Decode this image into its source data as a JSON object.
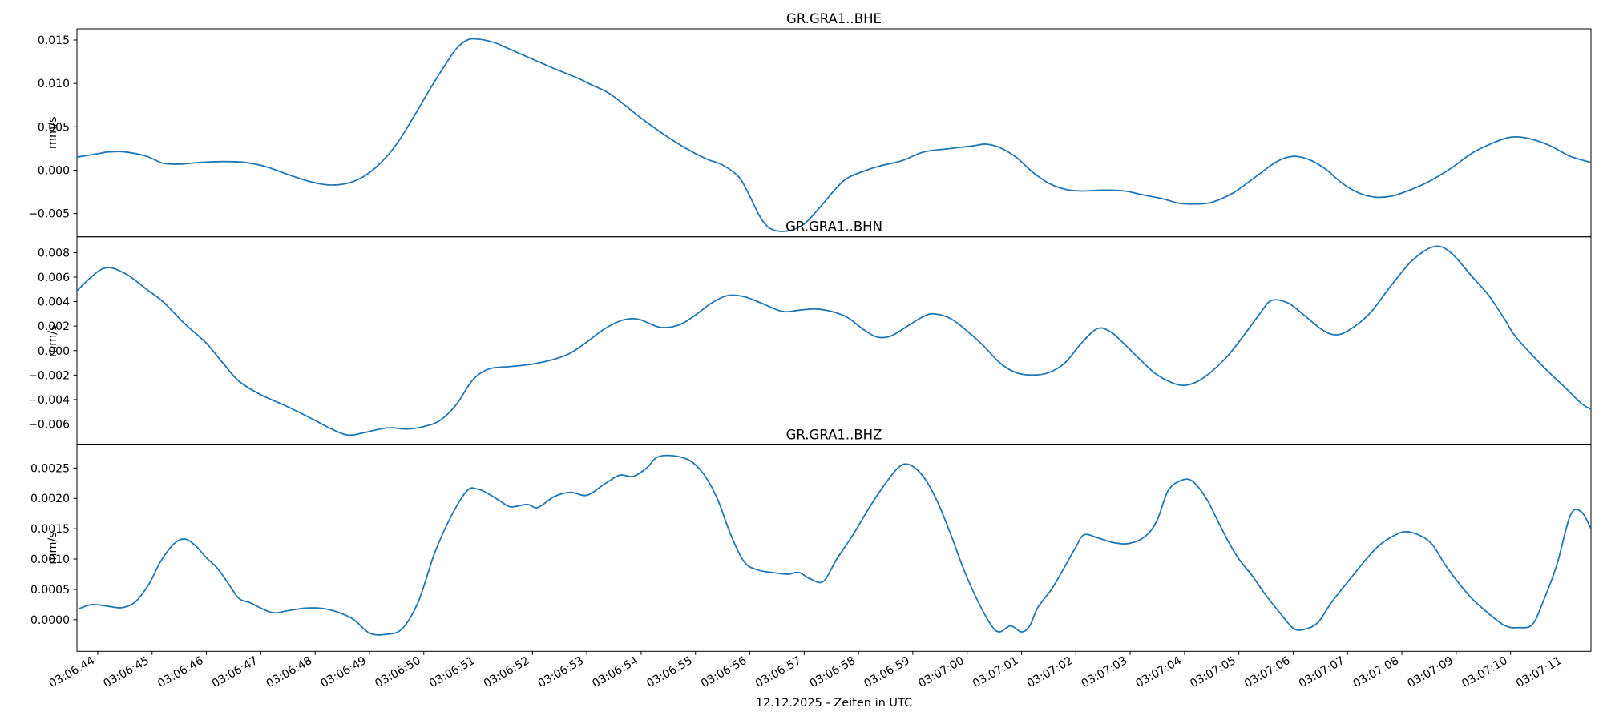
{
  "figure": {
    "background": "#ffffff",
    "trace_color": "#1f77b4",
    "axis_color": "#000000"
  },
  "x_axis": {
    "label": "12.12.2025 - Zeiten in UTC",
    "xlim": [
      -0.383,
      27.48
    ],
    "tick_times": [
      0,
      1,
      2,
      3,
      4,
      5,
      6,
      7,
      8,
      9,
      10,
      11,
      12,
      13,
      14,
      15,
      16,
      17,
      18,
      19,
      20,
      21,
      22,
      23,
      24,
      25,
      26,
      27
    ],
    "tick_labels": [
      "03:06:44",
      "03:06:45",
      "03:06:46",
      "03:06:47",
      "03:06:48",
      "03:06:49",
      "03:06:50",
      "03:06:51",
      "03:06:52",
      "03:06:53",
      "03:06:54",
      "03:06:55",
      "03:06:56",
      "03:06:57",
      "03:06:58",
      "03:06:59",
      "03:07:00",
      "03:07:01",
      "03:07:02",
      "03:07:03",
      "03:07:04",
      "03:07:05",
      "03:07:06",
      "03:07:07",
      "03:07:08",
      "03:07:09",
      "03:07:10",
      "03:07:11"
    ]
  },
  "chart_data": [
    {
      "type": "line",
      "title": "GR.GRA1..BHE",
      "ylabel": "mm/s",
      "x_unit": "seconds after 03:06:44 UTC",
      "ylim": [
        -0.00768,
        0.01629
      ],
      "yticks": [
        0.015,
        0.01,
        0.005,
        0.0,
        -0.005
      ],
      "ytick_labels": [
        "0.015",
        "0.010",
        "0.005",
        "0.000",
        "−0.005"
      ],
      "points": [
        [
          -0.38,
          0.0015
        ],
        [
          0,
          0.0019
        ],
        [
          0.2,
          0.0021
        ],
        [
          0.5,
          0.0021
        ],
        [
          0.9,
          0.0016
        ],
        [
          1.2,
          0.0008
        ],
        [
          1.5,
          0.0007
        ],
        [
          1.9,
          0.0009
        ],
        [
          2.3,
          0.001
        ],
        [
          2.7,
          0.0009
        ],
        [
          3.1,
          0.0004
        ],
        [
          3.5,
          -0.0005
        ],
        [
          3.9,
          -0.0013
        ],
        [
          4.25,
          -0.0017
        ],
        [
          4.6,
          -0.0015
        ],
        [
          4.9,
          -0.0007
        ],
        [
          5.2,
          0.0008
        ],
        [
          5.5,
          0.003
        ],
        [
          5.8,
          0.006
        ],
        [
          6.1,
          0.0092
        ],
        [
          6.4,
          0.0122
        ],
        [
          6.6,
          0.014
        ],
        [
          6.8,
          0.015
        ],
        [
          7.0,
          0.0151
        ],
        [
          7.3,
          0.0147
        ],
        [
          7.6,
          0.0139
        ],
        [
          8.0,
          0.0128
        ],
        [
          8.4,
          0.0117
        ],
        [
          8.8,
          0.0107
        ],
        [
          9.1,
          0.0098
        ],
        [
          9.4,
          0.0089
        ],
        [
          9.7,
          0.0075
        ],
        [
          10.0,
          0.006
        ],
        [
          10.4,
          0.0042
        ],
        [
          10.8,
          0.0026
        ],
        [
          11.2,
          0.0013
        ],
        [
          11.5,
          0.0006
        ],
        [
          11.8,
          -0.0008
        ],
        [
          12.0,
          -0.003
        ],
        [
          12.2,
          -0.0055
        ],
        [
          12.4,
          -0.0068
        ],
        [
          12.7,
          -0.007
        ],
        [
          13.0,
          -0.0062
        ],
        [
          13.3,
          -0.0042
        ],
        [
          13.6,
          -0.002
        ],
        [
          13.8,
          -0.0009
        ],
        [
          14.1,
          -0.0001
        ],
        [
          14.4,
          0.0005
        ],
        [
          14.8,
          0.0011
        ],
        [
          15.2,
          0.0021
        ],
        [
          15.7,
          0.0025
        ],
        [
          16.1,
          0.0028
        ],
        [
          16.35,
          0.003
        ],
        [
          16.6,
          0.0026
        ],
        [
          16.9,
          0.0015
        ],
        [
          17.2,
          -0.0002
        ],
        [
          17.5,
          -0.0015
        ],
        [
          17.8,
          -0.0022
        ],
        [
          18.1,
          -0.0024
        ],
        [
          18.5,
          -0.0023
        ],
        [
          18.9,
          -0.0024
        ],
        [
          19.2,
          -0.0028
        ],
        [
          19.6,
          -0.0033
        ],
        [
          19.9,
          -0.0038
        ],
        [
          20.2,
          -0.0039
        ],
        [
          20.5,
          -0.0037
        ],
        [
          20.9,
          -0.0026
        ],
        [
          21.3,
          -0.0008
        ],
        [
          21.7,
          0.001
        ],
        [
          22.0,
          0.0016
        ],
        [
          22.3,
          0.0012
        ],
        [
          22.6,
          0.0001
        ],
        [
          22.9,
          -0.0015
        ],
        [
          23.2,
          -0.0026
        ],
        [
          23.5,
          -0.0031
        ],
        [
          23.8,
          -0.003
        ],
        [
          24.1,
          -0.0024
        ],
        [
          24.5,
          -0.0013
        ],
        [
          24.9,
          0.0002
        ],
        [
          25.3,
          0.002
        ],
        [
          25.7,
          0.0032
        ],
        [
          26.0,
          0.0038
        ],
        [
          26.3,
          0.0037
        ],
        [
          26.7,
          0.0029
        ],
        [
          27.1,
          0.0016
        ],
        [
          27.48,
          0.0009
        ]
      ]
    },
    {
      "type": "line",
      "title": "GR.GRA1..BHN",
      "ylabel": "mm/s",
      "x_unit": "seconds after 03:06:44 UTC",
      "ylim": [
        -0.0077,
        0.00929
      ],
      "yticks": [
        0.008,
        0.006,
        0.004,
        0.002,
        0.0,
        -0.002,
        -0.004,
        -0.006
      ],
      "ytick_labels": [
        "0.008",
        "0.006",
        "0.004",
        "0.002",
        "0.000",
        "−0.002",
        "−0.004",
        "−0.006"
      ],
      "points": [
        [
          -0.38,
          0.0049
        ],
        [
          0.1,
          0.0067
        ],
        [
          0.5,
          0.0063
        ],
        [
          0.9,
          0.005
        ],
        [
          1.2,
          0.004
        ],
        [
          1.6,
          0.0022
        ],
        [
          2.0,
          0.0006
        ],
        [
          2.3,
          -0.001
        ],
        [
          2.6,
          -0.0025
        ],
        [
          3.0,
          -0.0036
        ],
        [
          3.5,
          -0.0046
        ],
        [
          4.0,
          -0.0057
        ],
        [
          4.3,
          -0.0064
        ],
        [
          4.6,
          -0.0069
        ],
        [
          4.9,
          -0.0067
        ],
        [
          5.2,
          -0.0064
        ],
        [
          5.4,
          -0.0063
        ],
        [
          5.7,
          -0.0064
        ],
        [
          6.0,
          -0.0062
        ],
        [
          6.3,
          -0.0057
        ],
        [
          6.6,
          -0.0044
        ],
        [
          6.9,
          -0.0024
        ],
        [
          7.2,
          -0.0015
        ],
        [
          7.6,
          -0.0013
        ],
        [
          8.0,
          -0.0011
        ],
        [
          8.4,
          -0.0007
        ],
        [
          8.7,
          -0.0002
        ],
        [
          9.0,
          0.0007
        ],
        [
          9.3,
          0.0017
        ],
        [
          9.6,
          0.0024
        ],
        [
          9.8,
          0.0026
        ],
        [
          10.0,
          0.0025
        ],
        [
          10.35,
          0.0019
        ],
        [
          10.7,
          0.0021
        ],
        [
          11.0,
          0.0029
        ],
        [
          11.3,
          0.0039
        ],
        [
          11.6,
          0.0045
        ],
        [
          11.9,
          0.0044
        ],
        [
          12.2,
          0.0039
        ],
        [
          12.6,
          0.0032
        ],
        [
          12.9,
          0.0033
        ],
        [
          13.2,
          0.0034
        ],
        [
          13.5,
          0.0032
        ],
        [
          13.8,
          0.0027
        ],
        [
          14.1,
          0.0017
        ],
        [
          14.35,
          0.0011
        ],
        [
          14.6,
          0.0012
        ],
        [
          14.9,
          0.002
        ],
        [
          15.2,
          0.0028
        ],
        [
          15.4,
          0.003
        ],
        [
          15.7,
          0.0026
        ],
        [
          16.0,
          0.0016
        ],
        [
          16.3,
          0.0004
        ],
        [
          16.6,
          -0.001
        ],
        [
          16.9,
          -0.0018
        ],
        [
          17.2,
          -0.002
        ],
        [
          17.5,
          -0.0018
        ],
        [
          17.8,
          -0.001
        ],
        [
          18.1,
          0.0006
        ],
        [
          18.4,
          0.0018
        ],
        [
          18.65,
          0.0015
        ],
        [
          18.9,
          0.0005
        ],
        [
          19.2,
          -0.0008
        ],
        [
          19.5,
          -0.002
        ],
        [
          19.9,
          -0.0028
        ],
        [
          20.2,
          -0.0026
        ],
        [
          20.5,
          -0.0017
        ],
        [
          20.8,
          -0.0004
        ],
        [
          21.1,
          0.0013
        ],
        [
          21.4,
          0.0031
        ],
        [
          21.6,
          0.0041
        ],
        [
          21.9,
          0.0039
        ],
        [
          22.2,
          0.0029
        ],
        [
          22.5,
          0.0018
        ],
        [
          22.75,
          0.0013
        ],
        [
          23.0,
          0.0016
        ],
        [
          23.4,
          0.003
        ],
        [
          23.8,
          0.0053
        ],
        [
          24.2,
          0.0074
        ],
        [
          24.6,
          0.0085
        ],
        [
          24.9,
          0.008
        ],
        [
          25.3,
          0.006
        ],
        [
          25.6,
          0.0045
        ],
        [
          25.9,
          0.0025
        ],
        [
          26.1,
          0.0011
        ],
        [
          26.6,
          -0.0013
        ],
        [
          27.0,
          -0.003
        ],
        [
          27.3,
          -0.0043
        ],
        [
          27.48,
          -0.0048
        ]
      ]
    },
    {
      "type": "line",
      "title": "GR.GRA1..BHZ",
      "ylabel": "mm/s",
      "x_unit": "seconds after 03:06:44 UTC",
      "ylim": [
        -0.00052,
        0.00288
      ],
      "yticks": [
        0.0025,
        0.002,
        0.0015,
        0.001,
        0.0005,
        0.0
      ],
      "ytick_labels": [
        "0.0025",
        "0.0020",
        "0.0015",
        "0.0010",
        "0.0005",
        "0.0000"
      ],
      "points": [
        [
          -0.35,
          0.00018
        ],
        [
          -0.1,
          0.00025
        ],
        [
          0.2,
          0.00022
        ],
        [
          0.45,
          0.0002
        ],
        [
          0.7,
          0.0003
        ],
        [
          0.95,
          0.0006
        ],
        [
          1.15,
          0.00095
        ],
        [
          1.4,
          0.00125
        ],
        [
          1.6,
          0.00133
        ],
        [
          1.8,
          0.00122
        ],
        [
          2.0,
          0.00102
        ],
        [
          2.2,
          0.00085
        ],
        [
          2.4,
          0.0006
        ],
        [
          2.6,
          0.00035
        ],
        [
          2.8,
          0.00028
        ],
        [
          3.2,
          0.00012
        ],
        [
          3.5,
          0.00015
        ],
        [
          3.8,
          0.00019
        ],
        [
          4.1,
          0.00019
        ],
        [
          4.4,
          0.00013
        ],
        [
          4.7,
          1e-05
        ],
        [
          5.0,
          -0.00022
        ],
        [
          5.3,
          -0.00024
        ],
        [
          5.6,
          -0.00015
        ],
        [
          5.9,
          0.0003
        ],
        [
          6.2,
          0.0011
        ],
        [
          6.5,
          0.0017
        ],
        [
          6.8,
          0.00213
        ],
        [
          7.0,
          0.00215
        ],
        [
          7.2,
          0.00207
        ],
        [
          7.4,
          0.00196
        ],
        [
          7.6,
          0.00186
        ],
        [
          7.9,
          0.0019
        ],
        [
          8.1,
          0.00185
        ],
        [
          8.4,
          0.00203
        ],
        [
          8.7,
          0.0021
        ],
        [
          9.0,
          0.00205
        ],
        [
          9.3,
          0.00222
        ],
        [
          9.6,
          0.00238
        ],
        [
          9.85,
          0.00236
        ],
        [
          10.1,
          0.0025
        ],
        [
          10.3,
          0.00268
        ],
        [
          10.6,
          0.0027
        ],
        [
          10.9,
          0.00262
        ],
        [
          11.15,
          0.0024
        ],
        [
          11.4,
          0.002
        ],
        [
          11.65,
          0.0014
        ],
        [
          11.9,
          0.00095
        ],
        [
          12.15,
          0.00082
        ],
        [
          12.4,
          0.00078
        ],
        [
          12.7,
          0.00075
        ],
        [
          12.9,
          0.00078
        ],
        [
          13.1,
          0.00068
        ],
        [
          13.35,
          0.00063
        ],
        [
          13.6,
          0.001
        ],
        [
          13.9,
          0.0014
        ],
        [
          14.2,
          0.00185
        ],
        [
          14.5,
          0.00225
        ],
        [
          14.75,
          0.00252
        ],
        [
          14.95,
          0.00255
        ],
        [
          15.2,
          0.00235
        ],
        [
          15.45,
          0.00195
        ],
        [
          15.7,
          0.0014
        ],
        [
          15.95,
          0.0008
        ],
        [
          16.2,
          0.0003
        ],
        [
          16.45,
          -0.0001
        ],
        [
          16.6,
          -0.0002
        ],
        [
          16.8,
          -0.0001
        ],
        [
          17.0,
          -0.0002
        ],
        [
          17.15,
          -0.0001
        ],
        [
          17.3,
          0.0002
        ],
        [
          17.55,
          0.0005
        ],
        [
          17.75,
          0.0008
        ],
        [
          18.0,
          0.0012
        ],
        [
          18.15,
          0.0014
        ],
        [
          18.4,
          0.00135
        ],
        [
          18.7,
          0.00127
        ],
        [
          19.0,
          0.00126
        ],
        [
          19.3,
          0.00139
        ],
        [
          19.5,
          0.00165
        ],
        [
          19.7,
          0.00213
        ],
        [
          19.95,
          0.0023
        ],
        [
          20.15,
          0.00228
        ],
        [
          20.4,
          0.002
        ],
        [
          20.6,
          0.00165
        ],
        [
          20.8,
          0.0013
        ],
        [
          21.0,
          0.001
        ],
        [
          21.25,
          0.00072
        ],
        [
          21.5,
          0.0004
        ],
        [
          21.75,
          0.00012
        ],
        [
          22.0,
          -0.00014
        ],
        [
          22.2,
          -0.00016
        ],
        [
          22.45,
          -5e-05
        ],
        [
          22.7,
          0.00028
        ],
        [
          23.0,
          0.00062
        ],
        [
          23.3,
          0.00095
        ],
        [
          23.55,
          0.0012
        ],
        [
          23.8,
          0.00136
        ],
        [
          24.05,
          0.00145
        ],
        [
          24.3,
          0.0014
        ],
        [
          24.55,
          0.00125
        ],
        [
          24.8,
          0.0009
        ],
        [
          25.05,
          0.0006
        ],
        [
          25.3,
          0.00034
        ],
        [
          25.6,
          0.0001
        ],
        [
          25.9,
          -0.0001
        ],
        [
          26.15,
          -0.00013
        ],
        [
          26.4,
          -8e-05
        ],
        [
          26.6,
          0.0003
        ],
        [
          26.85,
          0.0009
        ],
        [
          27.1,
          0.00172
        ],
        [
          27.3,
          0.00178
        ],
        [
          27.48,
          0.0015
        ]
      ]
    }
  ]
}
